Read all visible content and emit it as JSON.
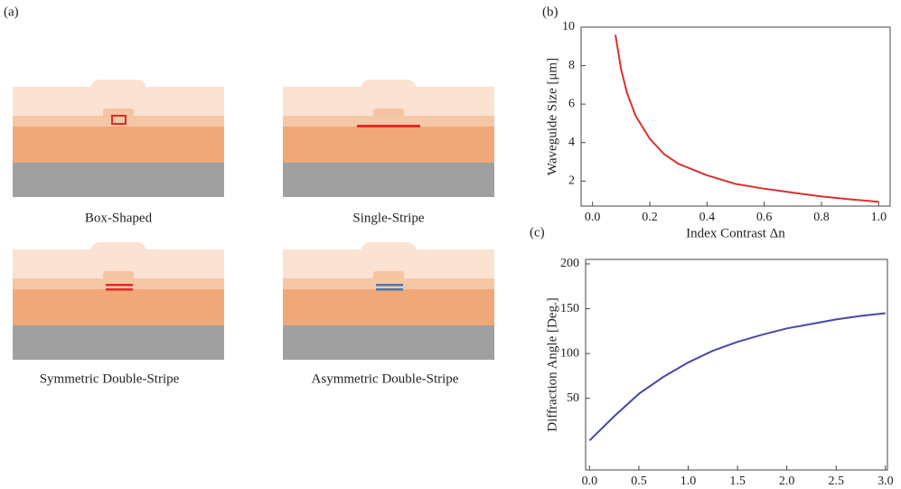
{
  "diagram": {
    "panel_label": "(a)",
    "captions": [
      "Box-Shaped",
      "Single-Stripe",
      "Symmetric Double-Stripe",
      "Asymmetric Double-Stripe"
    ]
  },
  "chart_data": [
    {
      "type": "line",
      "panel_label": "(b)",
      "y_label": "Waveguide Size [μm]",
      "x_label": "Index Contrast Δn",
      "color": "#d8322e",
      "x": [
        0.08,
        0.1,
        0.12,
        0.15,
        0.2,
        0.25,
        0.3,
        0.4,
        0.5,
        0.6,
        0.7,
        0.8,
        0.9,
        1.0
      ],
      "values": [
        9.6,
        7.8,
        6.6,
        5.4,
        4.2,
        3.4,
        2.9,
        2.3,
        1.85,
        1.6,
        1.4,
        1.2,
        1.05,
        0.92
      ],
      "xlim": [
        -0.04,
        1.04
      ],
      "ylim": [
        0.7,
        10
      ],
      "xticks": [
        {
          "value": 0,
          "label": "0.0"
        },
        0.2,
        0.4,
        0.6,
        0.8,
        {
          "value": 1,
          "label": "1.0"
        }
      ],
      "yticks": [
        2,
        4,
        6,
        8,
        10
      ]
    },
    {
      "type": "line",
      "panel_label": "(c)",
      "y_label": "Diffraction Angle [Deg.]",
      "x_label": "Index Contrast Δn",
      "color": "#4848a8",
      "x": [
        0,
        0.25,
        0.5,
        0.75,
        1.0,
        1.25,
        1.5,
        1.75,
        2.0,
        2.25,
        2.5,
        2.75,
        3.0
      ],
      "values": [
        3,
        30,
        55,
        74,
        90,
        103,
        113,
        121,
        128,
        133,
        138,
        142,
        145
      ],
      "xlim": [
        -0.04,
        3.02
      ],
      "ylim": [
        -30,
        205
      ],
      "xticks": [
        {
          "value": 0,
          "label": "0.0"
        },
        0.5,
        {
          "value": 1,
          "label": "1.0"
        },
        1.5,
        {
          "value": 2,
          "label": "2.0"
        },
        2.5,
        {
          "value": 3,
          "label": "3.0"
        }
      ],
      "yticks": [
        50,
        100,
        150,
        200
      ]
    }
  ]
}
